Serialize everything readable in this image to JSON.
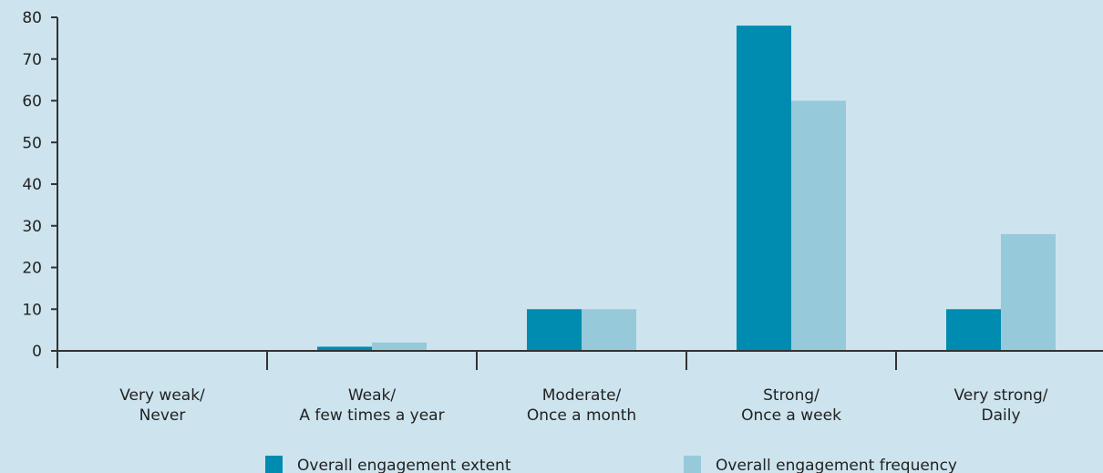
{
  "chart_data": {
    "type": "bar",
    "categories": [
      [
        "Very weak/",
        "Never"
      ],
      [
        "Weak/",
        "A few times a year"
      ],
      [
        "Moderate/",
        "Once a month"
      ],
      [
        "Strong/",
        "Once a week"
      ],
      [
        "Very strong/",
        "Daily"
      ]
    ],
    "series": [
      {
        "name": "Overall engagement extent",
        "values": [
          0,
          1,
          10,
          78,
          10
        ],
        "color": "#008bb0"
      },
      {
        "name": "Overall engagement frequency",
        "values": [
          0,
          2,
          10,
          60,
          28
        ],
        "color": "#96cadb"
      }
    ],
    "yticks": [
      "0",
      "10",
      "20",
      "30",
      "40",
      "50",
      "60",
      "70",
      "80"
    ],
    "ylim": [
      0,
      80
    ],
    "grid": false,
    "legend": "bottom",
    "axis_color": "#333333"
  }
}
